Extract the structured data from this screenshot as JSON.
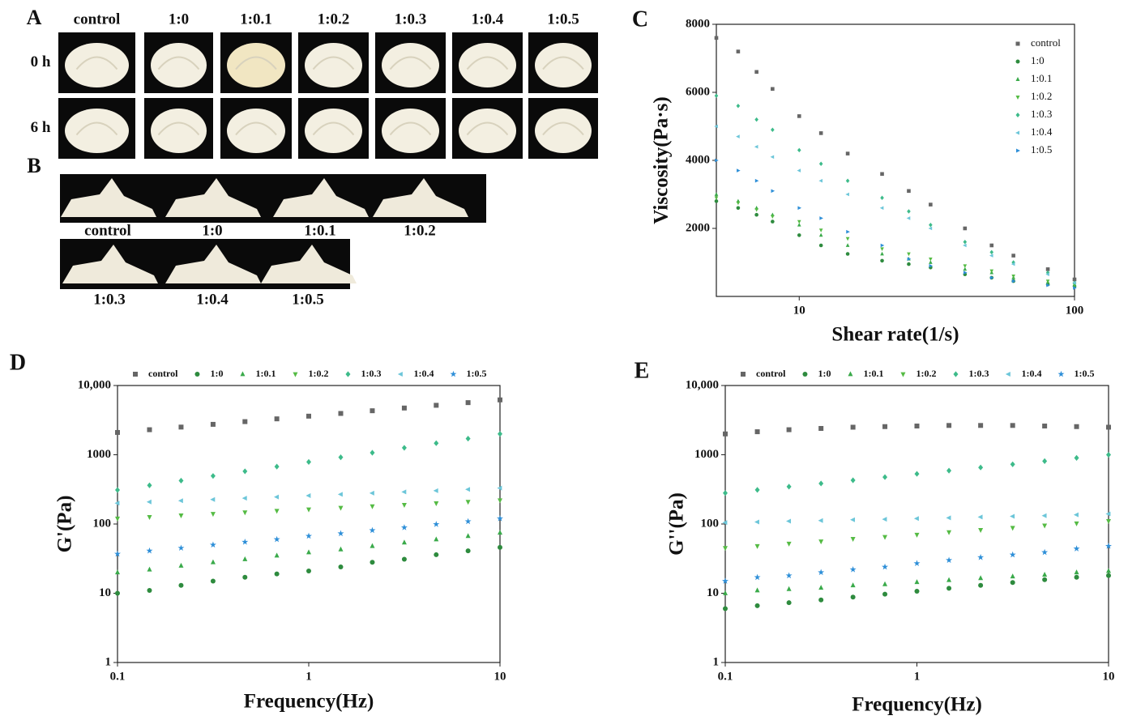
{
  "photo_panels": {
    "a": {
      "label": "A",
      "columns": [
        "control",
        "1:0",
        "1:0.1",
        "1:0.2",
        "1:0.3",
        "1:0.4",
        "1:0.5"
      ],
      "rows": [
        "0 h",
        "6 h"
      ]
    },
    "b": {
      "label": "B",
      "row1": [
        "control",
        "1:0",
        "1:0.1",
        "1:0.2"
      ],
      "row2": [
        "1:0.3",
        "1:0.4",
        "1:0.5"
      ]
    }
  },
  "chart_data": [
    {
      "type": "scatter",
      "panel": "C",
      "xlabel": "Shear rate(1/s)",
      "ylabel": "Viscosity(Pa·s)",
      "log_x": true,
      "log_y": false,
      "xlim": [
        5,
        100
      ],
      "ylim": [
        0,
        8000
      ],
      "xticks": [
        10,
        100
      ],
      "yticks": [
        2000,
        4000,
        6000,
        8000
      ],
      "legend": "upper right",
      "x": [
        5,
        6,
        7,
        8,
        10,
        12,
        15,
        20,
        25,
        30,
        40,
        50,
        60,
        80,
        100
      ],
      "series": [
        {
          "name": "control",
          "color": "#666666",
          "marker": "square",
          "values": [
            7600,
            7200,
            6600,
            6100,
            5300,
            4800,
            4200,
            3600,
            3100,
            2700,
            2000,
            1500,
            1200,
            800,
            500
          ]
        },
        {
          "name": "1:0",
          "color": "#2e8b3e",
          "marker": "circle",
          "values": [
            2800,
            2600,
            2400,
            2200,
            1800,
            1500,
            1250,
            1050,
            950,
            850,
            650,
            550,
            450,
            350,
            300
          ]
        },
        {
          "name": "1:0.1",
          "color": "#3aaa4a",
          "marker": "up",
          "values": [
            3000,
            2800,
            2600,
            2400,
            2100,
            1800,
            1500,
            1250,
            1100,
            1000,
            800,
            700,
            550,
            420,
            330
          ]
        },
        {
          "name": "1:0.2",
          "color": "#55bb44",
          "marker": "down",
          "values": [
            2900,
            2750,
            2550,
            2350,
            2200,
            1950,
            1700,
            1400,
            1250,
            1100,
            900,
            750,
            600,
            450,
            350
          ]
        },
        {
          "name": "1:0.3",
          "color": "#3dbb8a",
          "marker": "diamond",
          "values": [
            5900,
            5600,
            5200,
            4900,
            4300,
            3900,
            3400,
            2900,
            2500,
            2100,
            1600,
            1300,
            1000,
            700,
            400
          ]
        },
        {
          "name": "1:0.4",
          "color": "#6cc6d9",
          "marker": "left",
          "values": [
            5000,
            4700,
            4400,
            4100,
            3700,
            3400,
            3000,
            2600,
            2300,
            2000,
            1500,
            1200,
            950,
            650,
            400
          ]
        },
        {
          "name": "1:0.5",
          "color": "#2e8fd8",
          "marker": "right",
          "values": [
            4000,
            3700,
            3400,
            3100,
            2600,
            2300,
            1900,
            1500,
            1100,
            900,
            700,
            550,
            450,
            330,
            250
          ]
        }
      ]
    },
    {
      "type": "scatter",
      "panel": "D",
      "xlabel": "Frequency(Hz)",
      "ylabel": "G'(Pa)",
      "log_x": true,
      "log_y": true,
      "xlim": [
        0.1,
        10
      ],
      "ylim": [
        1,
        10000
      ],
      "xticks": [
        0.1,
        1,
        10
      ],
      "yticks": [
        1,
        10,
        100,
        1000,
        {
          "value": 10000,
          "label": "10,000"
        }
      ],
      "legend": "top",
      "x": [
        0.1,
        0.147,
        0.215,
        0.316,
        0.464,
        0.681,
        1,
        1.47,
        2.15,
        3.16,
        4.64,
        6.81,
        10
      ],
      "series": [
        {
          "name": "control",
          "color": "#666666",
          "marker": "square",
          "values": [
            2100,
            2300,
            2510,
            2750,
            3010,
            3300,
            3610,
            3950,
            4320,
            4730,
            5180,
            5660,
            6200
          ]
        },
        {
          "name": "1:0",
          "color": "#2e8b3e",
          "marker": "circle",
          "values": [
            10,
            11,
            13,
            15,
            17,
            19,
            21,
            24,
            28,
            31,
            36,
            41,
            46
          ]
        },
        {
          "name": "1:0.1",
          "color": "#3aaa4a",
          "marker": "up",
          "values": [
            20,
            22,
            25,
            28,
            31,
            35,
            39,
            43,
            48,
            54,
            60,
            67,
            75
          ]
        },
        {
          "name": "1:0.2",
          "color": "#55bb44",
          "marker": "down",
          "values": [
            120,
            126,
            133,
            140,
            147,
            155,
            162,
            171,
            180,
            189,
            199,
            209,
            220
          ]
        },
        {
          "name": "1:0.3",
          "color": "#3dbb8a",
          "marker": "diamond",
          "values": [
            310,
            362,
            423,
            494,
            577,
            674,
            787,
            920,
            1070,
            1260,
            1470,
            1710,
            2000
          ]
        },
        {
          "name": "1:0.4",
          "color": "#6cc6d9",
          "marker": "left",
          "values": [
            200,
            208,
            217,
            226,
            236,
            246,
            257,
            268,
            279,
            291,
            303,
            316,
            330
          ]
        },
        {
          "name": "1:0.5",
          "color": "#2e8fd8",
          "marker": "star",
          "values": [
            37,
            41,
            45,
            50,
            55,
            60,
            67,
            73,
            81,
            89,
            99,
            109,
            120
          ]
        }
      ]
    },
    {
      "type": "scatter",
      "panel": "E",
      "xlabel": "Frequency(Hz)",
      "ylabel": "G''(Pa)",
      "log_x": true,
      "log_y": true,
      "xlim": [
        0.1,
        10
      ],
      "ylim": [
        1,
        10000
      ],
      "xticks": [
        0.1,
        1,
        10
      ],
      "yticks": [
        1,
        10,
        100,
        1000,
        {
          "value": 10000,
          "label": "10,000"
        }
      ],
      "legend": "top",
      "x": [
        0.1,
        0.147,
        0.215,
        0.316,
        0.464,
        0.681,
        1,
        1.47,
        2.15,
        3.16,
        4.64,
        6.81,
        10
      ],
      "series": [
        {
          "name": "control",
          "color": "#666666",
          "marker": "square",
          "values": [
            2000,
            2150,
            2300,
            2400,
            2500,
            2550,
            2600,
            2650,
            2650,
            2650,
            2600,
            2550,
            2500
          ]
        },
        {
          "name": "1:0",
          "color": "#2e8b3e",
          "marker": "circle",
          "values": [
            6,
            6.6,
            7.3,
            8,
            8.8,
            9.7,
            10.7,
            11.8,
            13,
            14.3,
            15.7,
            17,
            18
          ]
        },
        {
          "name": "1:0.1",
          "color": "#3aaa4a",
          "marker": "up",
          "values": [
            10,
            11,
            11.5,
            12,
            13,
            13.5,
            14.5,
            15.5,
            16.5,
            17.5,
            18.5,
            20,
            21
          ]
        },
        {
          "name": "1:0.2",
          "color": "#55bb44",
          "marker": "down",
          "values": [
            45,
            48,
            52,
            56,
            61,
            65,
            70,
            76,
            82,
            88,
            95,
            102,
            110
          ]
        },
        {
          "name": "1:0.3",
          "color": "#3dbb8a",
          "marker": "diamond",
          "values": [
            280,
            311,
            346,
            385,
            428,
            476,
            530,
            589,
            655,
            728,
            809,
            900,
            1000
          ]
        },
        {
          "name": "1:0.4",
          "color": "#6cc6d9",
          "marker": "left",
          "values": [
            105,
            107,
            110,
            112,
            115,
            117,
            120,
            123,
            126,
            129,
            132,
            136,
            140
          ]
        },
        {
          "name": "1:0.5",
          "color": "#2e8fd8",
          "marker": "star",
          "values": [
            15,
            17,
            18,
            20,
            22,
            24,
            27,
            30,
            33,
            36,
            39,
            44,
            48
          ]
        }
      ]
    }
  ]
}
